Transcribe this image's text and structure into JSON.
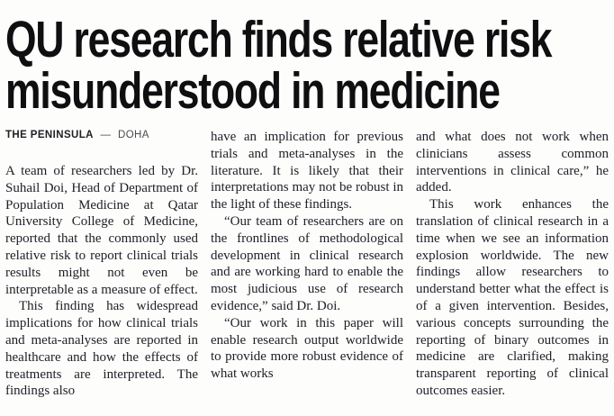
{
  "article": {
    "headline": {
      "text": "QU research finds relative risk misunderstood in medicine",
      "lines": [
        "QU research finds relative risk",
        "misunderstood in medicine"
      ]
    },
    "byline": {
      "source": "THE PENINSULA",
      "separator": "—",
      "location": "DOHA"
    },
    "columns": [
      {
        "paragraphs": [
          {
            "text": "A team of researchers led by Dr. Suhail Doi, Head of Department of Population Medicine at Qatar University College of Medicine, reported that the commonly used relative risk to report clinical trials results might not even be interpretable as a measure of effect."
          },
          {
            "text": "This finding has widespread implications for how clinical trials and meta-analyses are reported in healthcare and how the effects of treatments are interpreted. The findings also"
          }
        ]
      },
      {
        "paragraphs": [
          {
            "text": "have an implication for previous trials and meta-analyses in the literature. It is likely that their interpretations may not be robust in the light of these findings."
          },
          {
            "text": "“Our team of researchers are on the frontlines of methodological development in clinical research and are working hard to enable the most judicious use of research evidence,” said Dr. Doi."
          },
          {
            "text": "“Our work in this paper will enable research output worldwide to provide more robust evidence of what works"
          }
        ]
      },
      {
        "paragraphs": [
          {
            "text": "and what does not work when clinicians assess common interventions in clinical care,” he added."
          },
          {
            "text": "This work enhances the translation of clinical research in a time when we see an information explosion worldwide. The new findings allow researchers to understand better what the effect is of a given intervention. Besides, various concepts surrounding the reporting of binary outcomes in medicine are clarified, making transparent reporting of clinical outcomes easier."
          }
        ]
      }
    ]
  },
  "colors": {
    "paper": "#fdfdfc",
    "headline_ink": "#0f0f12",
    "body_ink": "#1e1e26",
    "byline_muted": "#4a4a50"
  }
}
